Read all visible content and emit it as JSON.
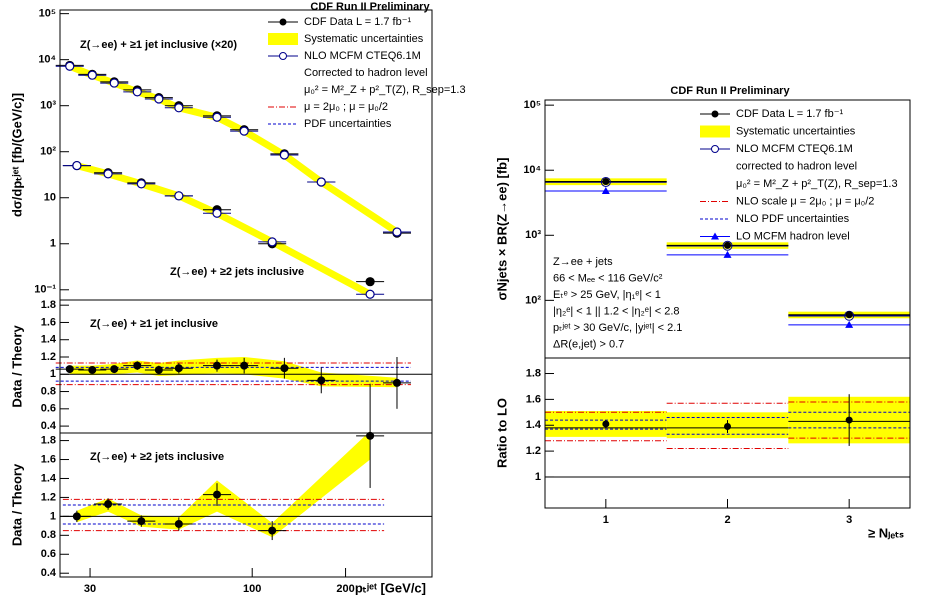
{
  "chart_data": [
    {
      "type": "spectrum",
      "title": "CDF Run II Preliminary",
      "y_label": "dσ/dpₜʲᵉᵗ [fb/(GeV/c)]",
      "log_x": true,
      "log_y": true,
      "xlim": [
        24,
        380
      ],
      "ylim": [
        0.06,
        120000
      ],
      "yticks": [
        {
          "value": 0.1,
          "label": "10⁻¹"
        },
        1,
        10,
        {
          "value": 100,
          "label": "10²"
        },
        {
          "value": 1000,
          "label": "10³"
        },
        {
          "value": 10000,
          "label": "10⁴"
        },
        {
          "value": 100000,
          "label": "10⁵"
        }
      ],
      "annotations": [
        "Z(→ee) + ≥1 jet inclusive (×20)",
        "Z(→ee) + ≥2 jets inclusive"
      ],
      "legend": [
        {
          "label": "CDF Data  L = 1.7 fb⁻¹",
          "symbol": "data"
        },
        {
          "label": "Systematic uncertainties",
          "symbol": "band"
        },
        {
          "label": "NLO MCFM CTEQ6.1M",
          "symbol": "open"
        },
        {
          "label": "Corrected to hadron level",
          "symbol": "none"
        },
        {
          "label": "μ₀² = M²_Z + p²_T(Z), R_sep=1.3",
          "symbol": "none"
        },
        {
          "label": "μ = 2μ₀ ; μ = μ₀/2",
          "symbol": "dashdot"
        },
        {
          "label": "PDF uncertainties",
          "symbol": "dash"
        }
      ],
      "series": [
        {
          "marker": "filled",
          "color": "#000000",
          "x": [
            25.8,
            30.5,
            35.9,
            42.6,
            50.0,
            58.0,
            77.0,
            94.2,
            127,
            167,
            293
          ],
          "values": [
            7500,
            4800,
            3300,
            2200,
            1500,
            1000,
            600,
            300,
            90,
            22,
            1.7
          ]
        },
        {
          "marker": "open",
          "color": "#00008b",
          "band": "#ffff00",
          "x": [
            25.8,
            30.5,
            35.9,
            42.6,
            50.0,
            58.0,
            77.0,
            94.2,
            127,
            167,
            293
          ],
          "values": [
            7200,
            4600,
            3100,
            2000,
            1400,
            900,
            560,
            280,
            85,
            22,
            1.8
          ]
        },
        {
          "marker": "filled",
          "color": "#000000",
          "x": [
            27.2,
            34.3,
            43.9,
            58.0,
            77.0,
            116,
            240
          ],
          "values": [
            50,
            35,
            21,
            11,
            5.5,
            1.0,
            0.15
          ]
        },
        {
          "marker": "open",
          "color": "#00008b",
          "band": "#ffff00",
          "x": [
            27.2,
            34.3,
            43.9,
            58.0,
            77.0,
            116,
            240
          ],
          "values": [
            50,
            33,
            20,
            11,
            4.6,
            1.1,
            0.08
          ]
        }
      ]
    },
    {
      "type": "ratio",
      "y_label": "Data / Theory",
      "annotation": "Z(→ee) + ≥1 jet inclusive",
      "log_x": true,
      "xlim": [
        24,
        380
      ],
      "ylim": [
        0.32,
        1.86
      ],
      "yticks": [
        0.4,
        0.6,
        0.8,
        1,
        1.2,
        1.4,
        1.6,
        1.8
      ],
      "reference_line": 1,
      "scale_band": [
        0.88,
        1.13
      ],
      "pdf_band": [
        0.92,
        1.08
      ],
      "x": [
        25.8,
        30.5,
        35.9,
        42.6,
        50.0,
        58.0,
        77.0,
        94.2,
        127,
        167,
        293
      ],
      "values": [
        1.06,
        1.05,
        1.06,
        1.1,
        1.05,
        1.07,
        1.1,
        1.1,
        1.07,
        0.93,
        0.9
      ],
      "errors": [
        0.04,
        0.04,
        0.04,
        0.05,
        0.05,
        0.06,
        0.07,
        0.09,
        0.12,
        0.15,
        0.3
      ],
      "band_low": [
        1.0,
        0.99,
        1.0,
        1.02,
        0.98,
        0.99,
        1.01,
        1.0,
        0.95,
        0.86,
        0.85
      ],
      "band_high": [
        1.1,
        1.1,
        1.12,
        1.16,
        1.13,
        1.16,
        1.19,
        1.2,
        1.15,
        1.02,
        0.96
      ]
    },
    {
      "type": "ratio",
      "y_label": "Data / Theory",
      "annotation": "Z(→ee) + ≥2 jets inclusive",
      "x_label": "pₜʲᵉᵗ  [GeV/c]",
      "log_x": true,
      "xlim": [
        24,
        380
      ],
      "ylim": [
        0.36,
        1.88
      ],
      "yticks": [
        0.4,
        0.6,
        0.8,
        1,
        1.2,
        1.4,
        1.6,
        1.8
      ],
      "xticks": [
        30,
        100,
        200
      ],
      "reference_line": 1,
      "scale_band": [
        0.85,
        1.18
      ],
      "pdf_band": [
        0.92,
        1.12
      ],
      "x": [
        27.2,
        34.3,
        43.9,
        58.0,
        77.0,
        116,
        240
      ],
      "values": [
        1.0,
        1.13,
        0.95,
        0.92,
        1.23,
        0.85,
        1.85
      ],
      "errors": [
        0.06,
        0.06,
        0.06,
        0.07,
        0.12,
        0.1,
        0.55
      ],
      "band_low": [
        0.94,
        1.05,
        0.89,
        0.86,
        1.05,
        0.78,
        1.6
      ],
      "band_high": [
        1.06,
        1.19,
        1.01,
        0.99,
        1.38,
        0.93,
        1.9
      ]
    },
    {
      "type": "njets",
      "title": "CDF Run II Preliminary",
      "y_label": "σNjets × BR(Z→ee) [fb]",
      "log_y": true,
      "xlim": [
        0.5,
        3.5
      ],
      "ylim": [
        13,
        120000
      ],
      "yticks": [
        {
          "value": 100,
          "label": "10²"
        },
        {
          "value": 1000,
          "label": "10³"
        },
        {
          "value": 10000,
          "label": "10⁴"
        },
        {
          "value": 100000,
          "label": "10⁵"
        }
      ],
      "legend": [
        {
          "label": "CDF Data  L = 1.7 fb⁻¹",
          "symbol": "data"
        },
        {
          "label": "Systematic uncertainties",
          "symbol": "band"
        },
        {
          "label": "NLO MCFM CTEQ6.1M",
          "symbol": "open"
        },
        {
          "label": "corrected to hadron level",
          "symbol": "none"
        },
        {
          "label": "μ₀² = M²_Z + p²_T(Z), R_sep=1.3",
          "symbol": "none"
        },
        {
          "label": "NLO scale μ = 2μ₀ ; μ = μ₀/2",
          "symbol": "dashdot"
        },
        {
          "label": "NLO PDF uncertainties",
          "symbol": "dash"
        },
        {
          "label": "LO MCFM hadron level",
          "symbol": "triangle"
        }
      ],
      "cuts": [
        "Z→ee + jets",
        "66 < Mₑₑ < 116 GeV/c²",
        "Eₜᵉ > 25 GeV, |η₁ᵉ| < 1",
        "|η₂ᵉ| < 1  ||  1.2 < |η₂ᵉ| < 2.8",
        "pₜʲᵉᵗ > 30 GeV/c, |yʲᵉᵗ| < 2.1",
        "ΔR(e,jet) > 0.7"
      ],
      "x": [
        1,
        2,
        3
      ],
      "values": [
        6700,
        700,
        60
      ],
      "nlo": [
        6600,
        690,
        58
      ],
      "lo": [
        4800,
        500,
        42
      ],
      "sys_low": [
        5900,
        620,
        53
      ],
      "sys_high": [
        7500,
        780,
        67
      ]
    },
    {
      "type": "ratio_bins",
      "y_label": "Ratio to LO",
      "x_label": "≥ Nⱼₑₜₛ",
      "xlim": [
        0.5,
        3.5
      ],
      "ylim": [
        0.76,
        1.92
      ],
      "yticks": [
        1,
        1.2,
        1.4,
        1.6,
        1.8
      ],
      "xticks": [
        1,
        2,
        3
      ],
      "reference_line": 1,
      "x": [
        1,
        2,
        3
      ],
      "values": [
        1.41,
        1.39,
        1.44
      ],
      "errors": [
        0.03,
        0.05,
        0.2
      ],
      "theory": [
        1.38,
        1.38,
        1.43
      ],
      "band_low": [
        1.31,
        1.3,
        1.26
      ],
      "band_high": [
        1.51,
        1.5,
        1.62
      ],
      "scale_low": [
        1.28,
        1.22,
        1.3
      ],
      "scale_high": [
        1.5,
        1.57,
        1.58
      ],
      "pdf_low": [
        1.37,
        1.33,
        1.38
      ],
      "pdf_high": [
        1.44,
        1.46,
        1.5
      ]
    }
  ]
}
